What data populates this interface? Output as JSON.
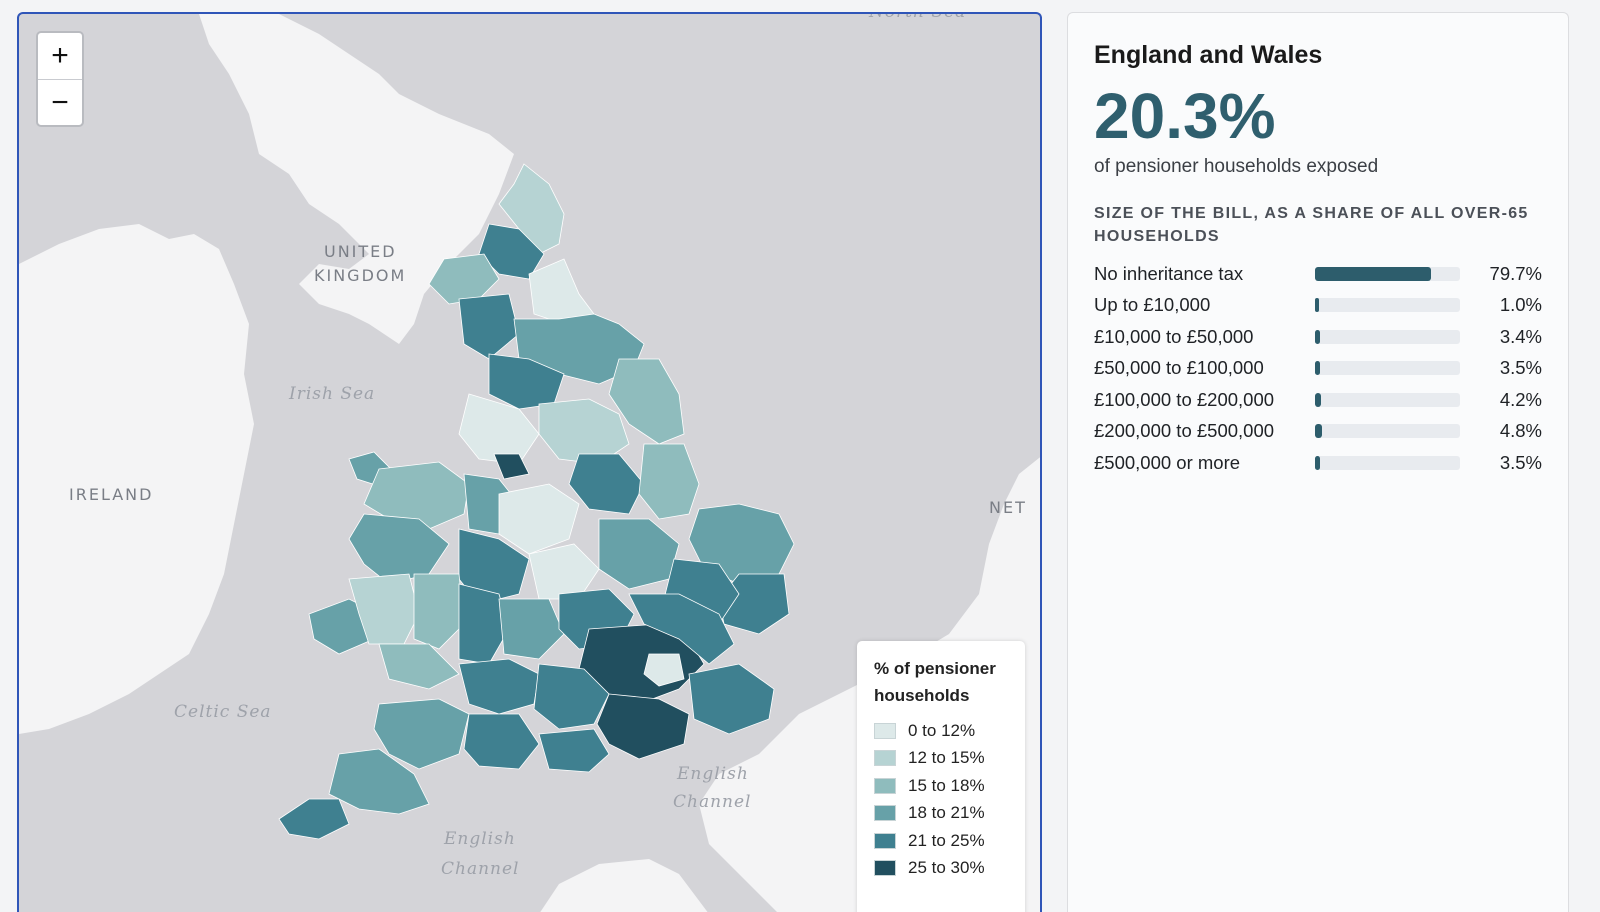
{
  "map": {
    "zoom_in_label": "+",
    "zoom_out_label": "−",
    "place_labels": {
      "united": "UNITED",
      "kingdom": "KINGDOM",
      "ireland": "IRELAND",
      "netherlands_partial": "NET",
      "north_sea_partial": "North Sea"
    },
    "sea_labels": {
      "irish_sea": "Irish Sea",
      "celtic_sea": "Celtic Sea",
      "english_channel_1a": "English",
      "english_channel_1b": "Channel",
      "english_channel_2a": "English",
      "english_channel_2b": "Channel"
    },
    "colors": {
      "water": "#d4d4d8",
      "land": "#f4f4f5",
      "brand": "#2d5d6c",
      "border": "#2f55b8"
    }
  },
  "legend": {
    "title": "% of pensioner households",
    "items": [
      {
        "label": "0 to 12%",
        "color": "#dde9e9"
      },
      {
        "label": "12 to 15%",
        "color": "#b6d3d3"
      },
      {
        "label": "15 to 18%",
        "color": "#8fbcbd"
      },
      {
        "label": "18 to 21%",
        "color": "#67a1a8"
      },
      {
        "label": "21 to 25%",
        "color": "#3f8090"
      },
      {
        "label": "25 to 30%",
        "color": "#214f5f"
      }
    ]
  },
  "summary": {
    "region": "England and Wales",
    "headline_value": "20.3%",
    "headline_caption": "of pensioner households exposed",
    "section_heading": "SIZE OF THE BILL, AS A SHARE OF ALL OVER-65 HOUSEHOLDS",
    "rows": [
      {
        "label": "No inheritance tax",
        "value_text": "79.7%",
        "value": 79.7
      },
      {
        "label": "Up to £10,000",
        "value_text": "1.0%",
        "value": 1.0
      },
      {
        "label": "£10,000 to £50,000",
        "value_text": "3.4%",
        "value": 3.4
      },
      {
        "label": "£50,000 to £100,000",
        "value_text": "3.5%",
        "value": 3.5
      },
      {
        "label": "£100,000 to £200,000",
        "value_text": "4.2%",
        "value": 4.2
      },
      {
        "label": "£200,000 to £500,000",
        "value_text": "4.8%",
        "value": 4.8
      },
      {
        "label": "£500,000 or more",
        "value_text": "3.5%",
        "value": 3.5
      }
    ]
  }
}
